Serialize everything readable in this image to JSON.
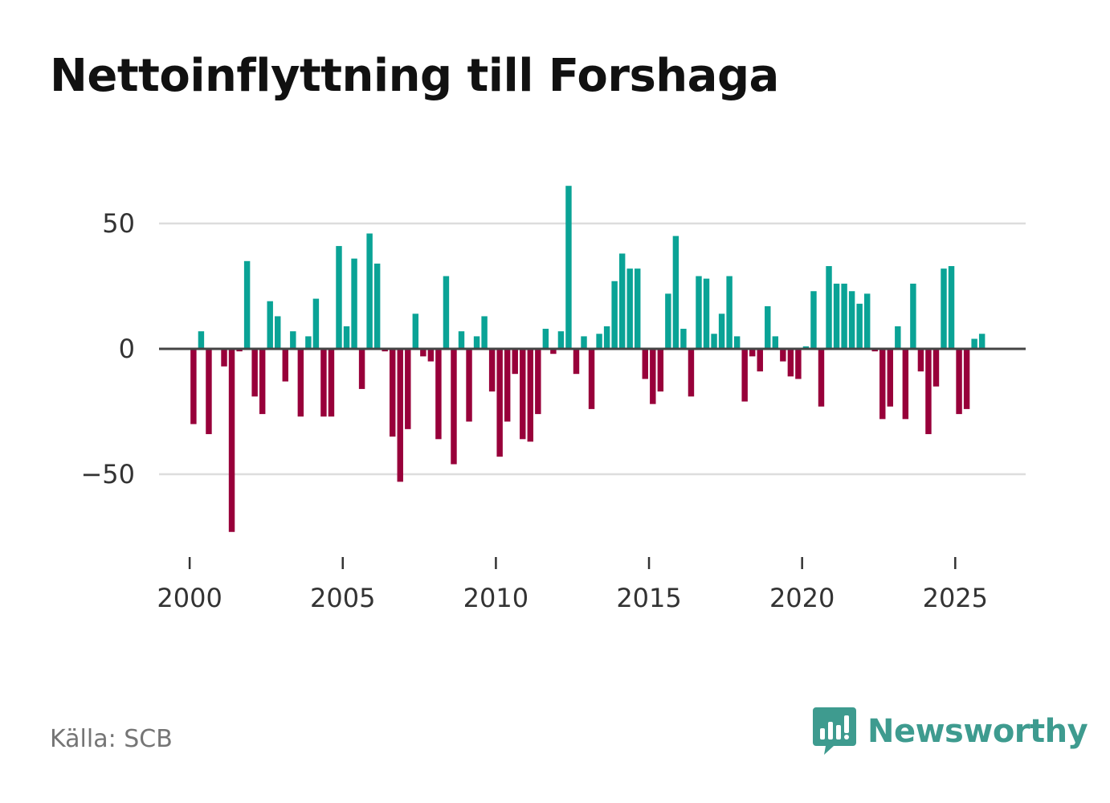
{
  "title": "Nettoinflyttning till Forshaga",
  "source": "Källa: SCB",
  "brand": {
    "name": "Newsworthy",
    "color": "#3e9b8f"
  },
  "colors": {
    "positive": "#0aa396",
    "negative": "#98003a",
    "grid": "#dddddd",
    "zero_line": "#444444"
  },
  "chart_data": {
    "type": "bar",
    "title": "Nettoinflyttning till Forshaga",
    "xlabel": "",
    "ylabel": "",
    "ylim": [
      -80,
      70
    ],
    "y_ticks": [
      50,
      0,
      -50
    ],
    "y_tick_labels": [
      "50",
      "0",
      "−50"
    ],
    "x_range": [
      1999.0,
      2027.3
    ],
    "x_ticks": [
      2000,
      2005,
      2010,
      2015,
      2020,
      2025
    ],
    "x_tick_labels": [
      "2000",
      "2005",
      "2010",
      "2015",
      "2020",
      "2025"
    ],
    "grid": true,
    "period": "quarterly",
    "start": 2000.0,
    "step": 0.25,
    "values": [
      -30,
      7,
      -34,
      0,
      -7,
      -73,
      -1,
      35,
      -19,
      -26,
      19,
      13,
      -13,
      7,
      -27,
      5,
      20,
      -27,
      -27,
      41,
      9,
      36,
      -16,
      46,
      34,
      -1,
      -35,
      -53,
      -32,
      14,
      -3,
      -5,
      -36,
      29,
      -46,
      7,
      -29,
      5,
      13,
      -17,
      -43,
      -29,
      -10,
      -36,
      -37,
      -26,
      8,
      -2,
      7,
      65,
      -10,
      5,
      -24,
      6,
      9,
      27,
      38,
      32,
      32,
      -12,
      -22,
      -17,
      22,
      45,
      8,
      -19,
      29,
      28,
      6,
      14,
      29,
      5,
      -21,
      -3,
      -9,
      17,
      5,
      -5,
      -11,
      -12,
      1,
      23,
      -23,
      33,
      26,
      26,
      23,
      18,
      22,
      -1,
      -28,
      -23,
      9,
      -28,
      26,
      -9,
      -34,
      -15,
      32,
      33,
      -26,
      -24,
      4,
      6
    ]
  }
}
